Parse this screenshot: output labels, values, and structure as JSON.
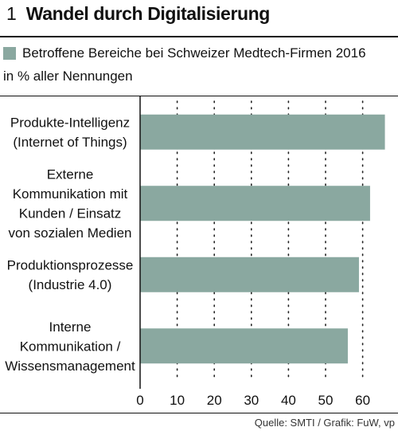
{
  "figure": {
    "number": "1",
    "title": "Wandel durch Digitalisierung",
    "legend_label": "Betroffene Bereiche bei Schweizer Medtech-Firmen 2016",
    "unit_label": "in % aller Nennungen",
    "source": "Quelle: SMTI / Grafik: FuW, vp"
  },
  "colors": {
    "bar": "#8aa8a0",
    "rule": "#111111"
  },
  "chart_data": {
    "type": "bar",
    "orientation": "horizontal",
    "title": "Wandel durch Digitalisierung",
    "subtitle": "Betroffene Bereiche bei Schweizer Medtech-Firmen 2016",
    "xlabel": "in % aller Nennungen",
    "ylabel": "",
    "categories": [
      [
        "Produkte-Intelligenz",
        "(Internet of Things)"
      ],
      [
        "Externe",
        "Kommunikation mit",
        "Kunden / Einsatz",
        "von sozialen Medien"
      ],
      [
        "Produktionsprozesse",
        "(Industrie 4.0)"
      ],
      [
        "Interne",
        "Kommunikation /",
        "Wissensmanagement"
      ]
    ],
    "series": [
      {
        "values": [
          66,
          62,
          59,
          56
        ]
      }
    ],
    "xlim": [
      0,
      70
    ],
    "ticks": [
      0,
      10,
      20,
      30,
      40,
      50,
      60
    ],
    "grid": "dotted vertical"
  }
}
